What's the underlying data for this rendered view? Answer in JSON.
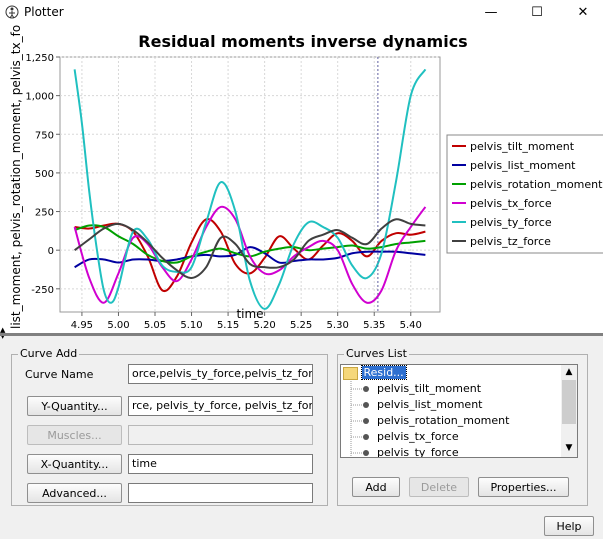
{
  "window": {
    "title": "Plotter",
    "minimize": "—",
    "maximize": "☐",
    "close": "✕"
  },
  "chart_data": {
    "type": "line",
    "title": "Residual moments inverse dynamics",
    "xlabel": "time",
    "ylabel": "list_moment, pelvis_rotation_moment, pelvis_tx_force, pelvis_",
    "xlim": [
      4.92,
      5.44
    ],
    "ylim": [
      -400,
      1250
    ],
    "xticks": [
      "4.95",
      "5.00",
      "5.05",
      "5.10",
      "5.15",
      "5.20",
      "5.25",
      "5.30",
      "5.35",
      "5.40"
    ],
    "xtick_values": [
      4.95,
      5.0,
      5.05,
      5.1,
      5.15,
      5.2,
      5.25,
      5.3,
      5.35,
      5.4
    ],
    "yticks": [
      "1,250",
      "1,000",
      "750",
      "500",
      "250",
      "0",
      "-250"
    ],
    "ytick_values": [
      1250,
      1000,
      750,
      500,
      250,
      0,
      -250
    ],
    "cursor_x": 5.355,
    "grid": true,
    "legend_position": "right",
    "series": [
      {
        "name": "pelvis_tilt_moment",
        "color": "#c00000",
        "x": [
          4.94,
          4.96,
          4.98,
          5.0,
          5.02,
          5.04,
          5.06,
          5.08,
          5.1,
          5.12,
          5.14,
          5.16,
          5.18,
          5.2,
          5.22,
          5.24,
          5.26,
          5.28,
          5.3,
          5.32,
          5.34,
          5.36,
          5.38,
          5.4,
          5.42
        ],
        "y": [
          150,
          140,
          160,
          170,
          120,
          -40,
          -260,
          -170,
          50,
          200,
          120,
          -90,
          -150,
          -50,
          90,
          10,
          -60,
          30,
          110,
          60,
          -40,
          60,
          110,
          100,
          120
        ]
      },
      {
        "name": "pelvis_list_moment",
        "color": "#0000a0",
        "x": [
          4.94,
          4.96,
          4.98,
          5.0,
          5.02,
          5.04,
          5.06,
          5.08,
          5.1,
          5.12,
          5.14,
          5.16,
          5.18,
          5.2,
          5.22,
          5.24,
          5.26,
          5.28,
          5.3,
          5.32,
          5.34,
          5.36,
          5.38,
          5.4,
          5.42
        ],
        "y": [
          -110,
          -60,
          -60,
          -80,
          -60,
          -60,
          -70,
          -60,
          -40,
          -30,
          -40,
          -30,
          20,
          -20,
          -80,
          -70,
          -60,
          -60,
          -50,
          -20,
          -10,
          -10,
          -10,
          -20,
          -30
        ]
      },
      {
        "name": "pelvis_rotation_moment",
        "color": "#00a000",
        "x": [
          4.94,
          4.96,
          4.98,
          5.0,
          5.02,
          5.04,
          5.06,
          5.08,
          5.1,
          5.12,
          5.14,
          5.16,
          5.18,
          5.2,
          5.22,
          5.24,
          5.26,
          5.28,
          5.3,
          5.32,
          5.34,
          5.36,
          5.38,
          5.4,
          5.42
        ],
        "y": [
          130,
          160,
          150,
          90,
          40,
          -30,
          -70,
          -80,
          -40,
          -10,
          10,
          -20,
          -40,
          -10,
          10,
          20,
          0,
          10,
          20,
          30,
          10,
          20,
          40,
          50,
          60
        ]
      },
      {
        "name": "pelvis_tx_force",
        "color": "#d000d0",
        "x": [
          4.94,
          4.96,
          4.98,
          5.0,
          5.02,
          5.04,
          5.06,
          5.08,
          5.1,
          5.12,
          5.14,
          5.16,
          5.18,
          5.2,
          5.22,
          5.24,
          5.26,
          5.28,
          5.3,
          5.32,
          5.34,
          5.36,
          5.38,
          5.4,
          5.42
        ],
        "y": [
          150,
          -180,
          -340,
          -150,
          80,
          40,
          -110,
          -200,
          -60,
          150,
          280,
          200,
          -40,
          -150,
          -130,
          -40,
          20,
          60,
          0,
          -220,
          -340,
          -260,
          0,
          150,
          280
        ]
      },
      {
        "name": "pelvis_ty_force",
        "color": "#20c0c0",
        "x": [
          4.94,
          4.95,
          4.96,
          4.97,
          4.98,
          4.99,
          5.0,
          5.02,
          5.04,
          5.06,
          5.08,
          5.1,
          5.12,
          5.14,
          5.16,
          5.18,
          5.2,
          5.22,
          5.24,
          5.26,
          5.28,
          5.3,
          5.32,
          5.34,
          5.36,
          5.38,
          5.4,
          5.42
        ],
        "y": [
          1170,
          820,
          380,
          20,
          -260,
          -340,
          -240,
          120,
          70,
          -100,
          -140,
          -110,
          180,
          440,
          250,
          -200,
          -380,
          -220,
          40,
          180,
          150,
          80,
          -100,
          -180,
          -20,
          450,
          1000,
          1170
        ]
      },
      {
        "name": "pelvis_tz_force",
        "color": "#404040",
        "x": [
          4.94,
          4.96,
          4.98,
          5.0,
          5.02,
          5.04,
          5.06,
          5.08,
          5.1,
          5.12,
          5.14,
          5.16,
          5.18,
          5.2,
          5.22,
          5.24,
          5.26,
          5.28,
          5.3,
          5.32,
          5.34,
          5.36,
          5.38,
          5.4,
          5.42
        ],
        "y": [
          0,
          70,
          140,
          170,
          130,
          50,
          -50,
          -130,
          -180,
          -110,
          80,
          40,
          -90,
          -110,
          -110,
          -60,
          60,
          100,
          130,
          80,
          40,
          140,
          200,
          170,
          160
        ]
      }
    ]
  },
  "curve_add": {
    "legend": "Curve Add",
    "curve_name_label": "Curve Name",
    "curve_name_value": "orce,pelvis_ty_force,pelvis_tz_force",
    "y_quantity_button": "Y-Quantity...",
    "y_quantity_value": "rce, pelvis_ty_force, pelvis_tz_force",
    "muscles_button": "Muscles...",
    "muscles_value": "",
    "x_quantity_button": "X-Quantity...",
    "x_quantity_value": "time",
    "advanced_button": "Advanced...",
    "advanced_value": ""
  },
  "curves_list": {
    "legend": "Curves List",
    "root": "Resid...",
    "items": [
      "pelvis_tilt_moment",
      "pelvis_list_moment",
      "pelvis_rotation_moment",
      "pelvis_tx_force",
      "pelvis_ty_force"
    ],
    "add_button": "Add",
    "delete_button": "Delete",
    "properties_button": "Properties..."
  },
  "help_button": "Help"
}
